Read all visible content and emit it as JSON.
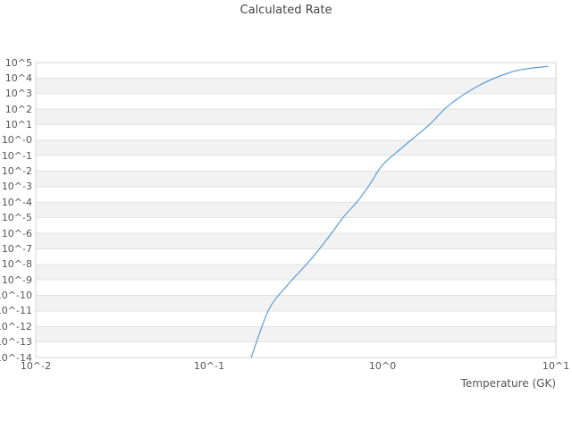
{
  "chart_data": {
    "type": "line",
    "title": "Calculated Rate",
    "xlabel": "Temperature (GK)",
    "ylabel": "",
    "x_scale": "log",
    "y_scale": "log",
    "xlim_log10": [
      -2,
      1
    ],
    "ylim_log10": [
      -14,
      5
    ],
    "x_tick_labels": [
      "10^-2",
      "10^-1",
      "10^0",
      "10^1"
    ],
    "y_tick_labels": [
      "10^5",
      "10^4",
      "10^3",
      "10^2",
      "10^1",
      "10^-0",
      "10^-1",
      "10^-2",
      "10^-3",
      "10^-4",
      "10^-5",
      "10^-6",
      "10^-7",
      "10^-8",
      "10^-9",
      "10^-10",
      "10^-11",
      "10^-12",
      "10^-13",
      "10^-14"
    ],
    "grid": "horizontal-decade-lines-with-alternating-bands",
    "legend": "none",
    "colors": {
      "band": "#f2f2f2",
      "gridline": "#e2e2e2",
      "border": "#d6d6d6",
      "text": "#555555",
      "line": "#5b9bd5",
      "background": "#ffffff"
    },
    "series": [
      {
        "name": "calculated_rate",
        "points_T_log10rate": [
          [
            0.175,
            -14.0
          ],
          [
            0.22,
            -10.95
          ],
          [
            0.28,
            -9.4
          ],
          [
            0.337,
            -8.41
          ],
          [
            0.395,
            -7.55
          ],
          [
            0.5,
            -6.1
          ],
          [
            0.6,
            -4.9
          ],
          [
            0.72,
            -3.92
          ],
          [
            0.85,
            -2.8
          ],
          [
            1.0,
            -1.6
          ],
          [
            1.3,
            -0.47
          ],
          [
            1.85,
            0.97
          ],
          [
            2.44,
            2.29
          ],
          [
            3.65,
            3.56
          ],
          [
            5.42,
            4.36
          ],
          [
            7.0,
            4.62
          ],
          [
            9.0,
            4.75
          ]
        ]
      }
    ]
  }
}
